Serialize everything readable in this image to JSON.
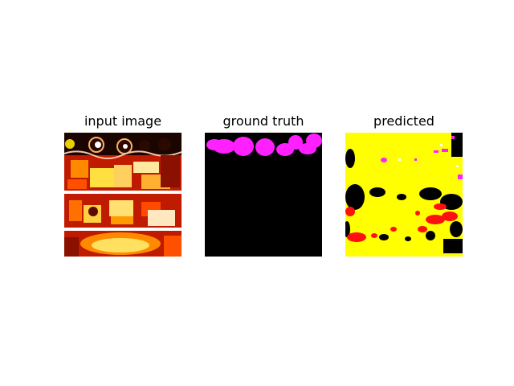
{
  "figure": {
    "panels": [
      {
        "title": "input image"
      },
      {
        "title": "ground truth"
      },
      {
        "title": "predicted"
      }
    ]
  },
  "colors": {
    "background": "#ffffff",
    "mask_black": "#000000",
    "mask_magenta": "#ff20ff",
    "pred_yellow": "#ffff00",
    "pred_red": "#ff1010",
    "input_red": "#d22000",
    "input_orange": "#ff8a00",
    "input_yellow": "#ffe040"
  }
}
